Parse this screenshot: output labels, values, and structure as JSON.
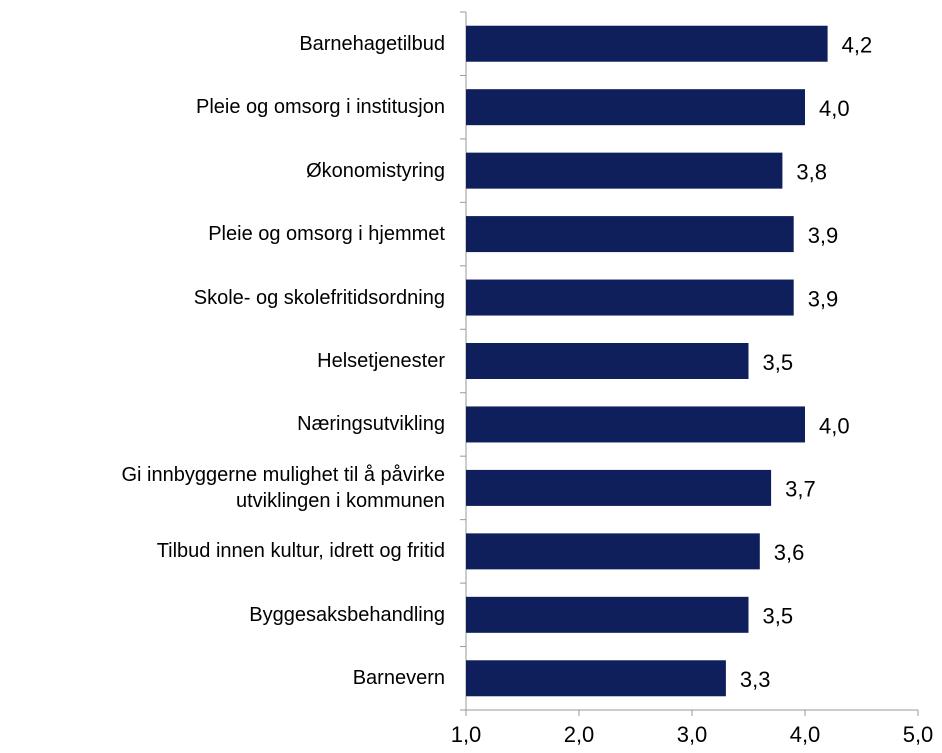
{
  "chart_data": {
    "type": "barh",
    "categories": [
      "Barnehagetilbud",
      "Pleie og omsorg i institusjon",
      "Økonomistyring",
      "Pleie og omsorg i hjemmet",
      "Skole- og skolefritidsordning",
      "Helsetjenester",
      "Næringsutvikling",
      "Gi innbyggerne mulighet til å påvirke\nutviklingen i kommunen",
      "Tilbud innen kultur, idrett og fritid",
      "Byggesaksbehandling",
      "Barnevern"
    ],
    "values": [
      4.2,
      4.0,
      3.8,
      3.9,
      3.9,
      3.5,
      4.0,
      3.7,
      3.6,
      3.5,
      3.3
    ],
    "value_labels": [
      "4,2",
      "4,0",
      "3,8",
      "3,9",
      "3,9",
      "3,5",
      "4,0",
      "3,7",
      "3,6",
      "3,5",
      "3,3"
    ],
    "color": "#0f1f5c",
    "xlim": [
      1.0,
      5.0
    ],
    "xticks": [
      {
        "value": 1.0,
        "label": "1,0"
      },
      {
        "value": 2.0,
        "label": "2,0"
      },
      {
        "value": 3.0,
        "label": "3,0"
      },
      {
        "value": 4.0,
        "label": "4,0"
      },
      {
        "value": 5.0,
        "label": "5,0"
      }
    ]
  }
}
